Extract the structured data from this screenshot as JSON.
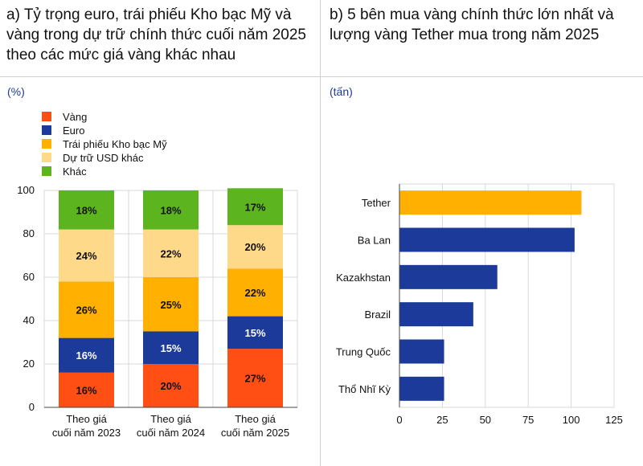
{
  "panel_a": {
    "title": "a) Tỷ trọng euro, trái phiếu Kho bạc Mỹ và\nvàng trong dự trữ chính thức cuối năm 2025\ntheo các mức giá vàng khác nhau",
    "unit": "(%)"
  },
  "panel_b": {
    "title": "b) 5 bên mua vàng chính thức lớn nhất và\nlượng vàng Tether mua trong năm 2025",
    "unit": "(tấn)"
  },
  "chart_data": [
    {
      "type": "bar",
      "stacked": true,
      "orientation": "vertical",
      "categories": [
        "Theo giá\ncuối năm 2023",
        "Theo giá\ncuối năm 2024",
        "Theo giá\ncuối năm 2025"
      ],
      "series": [
        {
          "name": "Vàng",
          "color": "#ff4f14",
          "values": [
            16,
            20,
            27
          ],
          "labels": [
            "16%",
            "20%",
            "27%"
          ]
        },
        {
          "name": "Euro",
          "color": "#1b3a9a",
          "values": [
            16,
            15,
            15
          ],
          "labels": [
            "16%",
            "15%",
            "15%"
          ]
        },
        {
          "name": "Trái phiếu Kho bạc Mỹ",
          "color": "#ffb000",
          "values": [
            26,
            25,
            22
          ],
          "labels": [
            "26%",
            "25%",
            "22%"
          ]
        },
        {
          "name": "Dự trữ USD khác",
          "color": "#ffd98a",
          "values": [
            24,
            22,
            20
          ],
          "labels": [
            "24%",
            "22%",
            "20%"
          ]
        },
        {
          "name": "Khác",
          "color": "#5cb51f",
          "values": [
            18,
            18,
            17
          ],
          "labels": [
            "18%",
            "18%",
            "17%"
          ]
        }
      ],
      "ylim": [
        0,
        100
      ],
      "yticks": [
        "0",
        "20",
        "40",
        "60",
        "80",
        "100"
      ],
      "grid": true,
      "legend": "top-left"
    },
    {
      "type": "bar",
      "orientation": "horizontal",
      "categories": [
        "Tether",
        "Ba Lan",
        "Kazakhstan",
        "Brazil",
        "Trung Quốc",
        "Thổ Nhĩ Kỳ"
      ],
      "values": [
        106,
        102,
        57,
        43,
        26,
        26
      ],
      "colors": [
        "#ffb000",
        "#1b3a9a",
        "#1b3a9a",
        "#1b3a9a",
        "#1b3a9a",
        "#1b3a9a"
      ],
      "xlim": [
        0,
        125
      ],
      "xticks": [
        "0",
        "25",
        "50",
        "75",
        "100",
        "125"
      ],
      "grid": true
    }
  ]
}
